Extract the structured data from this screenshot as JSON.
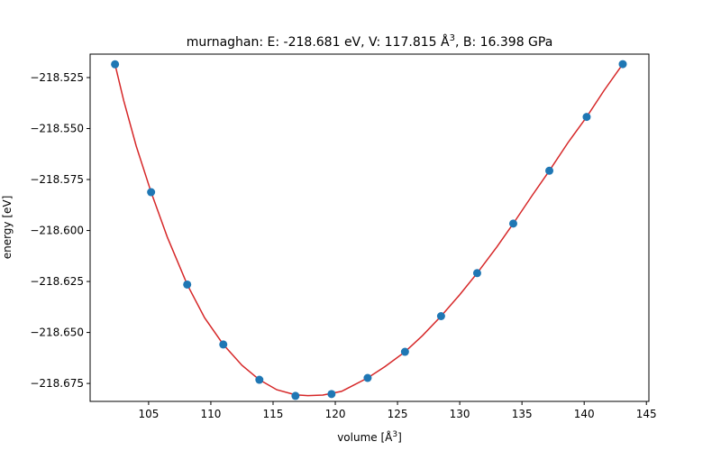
{
  "chart_data": {
    "type": "scatter",
    "title": "murnaghan: E: -218.681 eV, V: 117.815 Å",
    "title_superscript": "3",
    "title_suffix": ", B: 16.398 GPa",
    "xlabel": "volume [Å",
    "xlabel_superscript": "3",
    "xlabel_suffix": "]",
    "ylabel": "energy [eV]",
    "xlim": [
      100.3,
      145.2
    ],
    "ylim": [
      -218.6838,
      -218.5135
    ],
    "xticks": [
      105,
      110,
      115,
      120,
      125,
      130,
      135,
      140,
      145
    ],
    "yticks": [
      -218.675,
      -218.65,
      -218.625,
      -218.6,
      -218.575,
      -218.55,
      -218.525
    ],
    "ytick_labels": [
      "−218.675",
      "−218.650",
      "−218.625",
      "−218.600",
      "−218.575",
      "−218.550",
      "−218.525"
    ],
    "grid": false,
    "series": [
      {
        "kind": "points",
        "color": "#1f77b4",
        "x": [
          102.3,
          105.2,
          108.1,
          111.0,
          113.9,
          116.8,
          119.7,
          122.6,
          125.6,
          128.5,
          131.4,
          134.3,
          137.2,
          140.2,
          143.1
        ],
        "y": [
          -218.5185,
          -218.5812,
          -218.6265,
          -218.6559,
          -218.6732,
          -218.6811,
          -218.6802,
          -218.6723,
          -218.6595,
          -218.642,
          -218.6209,
          -218.5966,
          -218.5707,
          -218.5443,
          -218.5184
        ]
      },
      {
        "kind": "fit",
        "color": "#d62728",
        "x": [
          102.3,
          103.0,
          104.0,
          105.2,
          106.5,
          108.1,
          109.5,
          111.0,
          112.5,
          113.9,
          115.3,
          116.8,
          117.8,
          119.0,
          120.5,
          122.6,
          124.0,
          125.6,
          127.0,
          128.5,
          130.0,
          131.4,
          133.0,
          134.3,
          135.8,
          137.2,
          138.7,
          140.2,
          141.6,
          143.1
        ],
        "y": [
          -218.5185,
          -218.5363,
          -218.5585,
          -218.5812,
          -218.6032,
          -218.6265,
          -218.6428,
          -218.6559,
          -218.6661,
          -218.6732,
          -218.6781,
          -218.6806,
          -218.681,
          -218.6807,
          -218.6789,
          -218.6723,
          -218.6667,
          -218.6595,
          -218.6516,
          -218.642,
          -218.6315,
          -218.6209,
          -218.6079,
          -218.5966,
          -218.583,
          -218.5707,
          -218.5569,
          -218.5443,
          -218.5313,
          -218.5184
        ]
      }
    ]
  }
}
